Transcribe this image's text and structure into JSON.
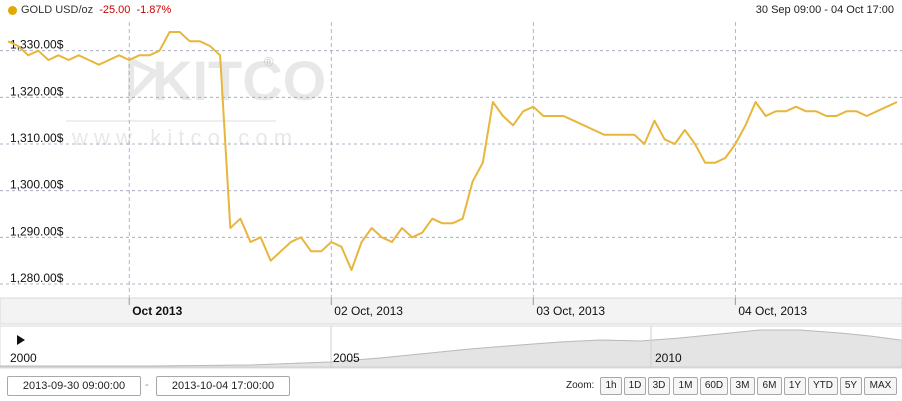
{
  "header": {
    "instrument": "GOLD USD/oz",
    "change": "-25.00",
    "change_pct": "-1.87%",
    "date_range": "30 Sep 09:00 - 04 Oct 17:00"
  },
  "watermark": {
    "brand": "KITCO",
    "url": "w w w . k i t c o . c o m"
  },
  "navigator": {
    "years": [
      "2000",
      "2005",
      "2010"
    ]
  },
  "range_inputs": {
    "from": "2013-09-30 09:00:00",
    "separator": "-",
    "to": "2013-10-04 17:00:00"
  },
  "zoom": {
    "label": "Zoom:",
    "buttons": [
      "1h",
      "1D",
      "3D",
      "1M",
      "60D",
      "3M",
      "6M",
      "1Y",
      "YTD",
      "5Y",
      "MAX"
    ]
  },
  "colors": {
    "series": "#e8b63c",
    "dot": "#e0a800",
    "negative": "#cc0000"
  },
  "chart_data": {
    "type": "line",
    "title": "",
    "xlabel": "",
    "ylabel": "",
    "ylim": [
      1277,
      1337
    ],
    "yticks": [
      1280,
      1290,
      1300,
      1310,
      1320,
      1330
    ],
    "ytick_labels": [
      "1,280.00$",
      "1,290.00$",
      "1,300.00$",
      "1,310.00$",
      "1,320.00$",
      "1,330.00$"
    ],
    "xlim": [
      0,
      44
    ],
    "xticks": [
      6,
      16,
      26,
      36
    ],
    "xtick_labels": [
      "Oct 2013",
      "02 Oct, 2013",
      "03 Oct, 2013",
      "04 Oct, 2013"
    ],
    "grid": true,
    "series": [
      {
        "x": [
          0,
          0.5,
          1,
          1.5,
          2,
          2.5,
          3,
          3.5,
          4,
          4.5,
          5,
          5.5,
          6,
          6.5,
          7,
          7.5,
          8,
          8.5,
          9,
          9.5,
          10,
          10.5,
          11,
          11.5,
          12,
          12.5,
          13,
          13.5,
          14,
          14.5,
          15,
          15.5,
          16,
          16.5,
          17,
          17.5,
          18,
          18.5,
          19,
          19.5,
          20,
          20.5,
          21,
          21.5,
          22,
          22.5,
          23,
          23.5,
          24,
          24.5,
          25,
          25.5,
          26,
          26.5,
          27,
          27.5,
          28,
          28.5,
          29,
          29.5,
          30,
          30.5,
          31,
          31.5,
          32,
          32.5,
          33,
          33.5,
          34,
          34.5,
          35,
          35.5,
          36,
          36.5,
          37,
          37.5,
          38,
          38.5,
          39,
          39.5,
          40,
          40.5,
          41,
          41.5,
          42,
          42.5,
          43,
          43.5,
          44
        ],
        "values": [
          1332,
          1331,
          1329,
          1330,
          1328,
          1329,
          1328,
          1329,
          1328,
          1327,
          1328,
          1329,
          1328,
          1329,
          1329,
          1330,
          1334,
          1334,
          1332,
          1332,
          1331,
          1329,
          1292,
          1294,
          1289,
          1290,
          1285,
          1287,
          1289,
          1290,
          1287,
          1287,
          1289,
          1288,
          1283,
          1289,
          1292,
          1290,
          1289,
          1292,
          1290,
          1291,
          1294,
          1293,
          1293,
          1294,
          1302,
          1306,
          1319,
          1316,
          1314,
          1317,
          1318,
          1316,
          1316,
          1316,
          1315,
          1314,
          1313,
          1312,
          1312,
          1312,
          1312,
          1310,
          1315,
          1311,
          1310,
          1313,
          1310,
          1306,
          1306,
          1307,
          1310,
          1314,
          1319,
          1316,
          1317,
          1317,
          1318,
          1317,
          1317,
          1316,
          1316,
          1317,
          1317,
          1316,
          1317,
          1318,
          1319
        ]
      }
    ]
  }
}
